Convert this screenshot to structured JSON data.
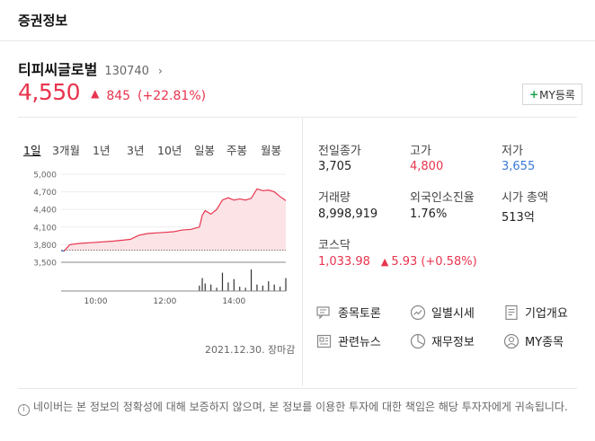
{
  "header": {
    "title": "증권정보"
  },
  "stock": {
    "name": "티피씨글로벌",
    "code": "130740",
    "price": "4,550",
    "change": "845",
    "change_pct": "(+22.81%)",
    "my_button": "MY등록"
  },
  "periods": [
    "1일",
    "3개월",
    "1년",
    "3년",
    "10년",
    "일봉",
    "주봉",
    "월봉"
  ],
  "active_period": "1일",
  "chart_data": {
    "type": "area",
    "title": "",
    "y_ticks": [
      "5,000",
      "4,700",
      "4,400",
      "4,100",
      "3,800",
      "3,500"
    ],
    "ylim": [
      3500,
      5000
    ],
    "x_ticks": [
      "10:00",
      "12:00",
      "14:00"
    ],
    "x_time_range": [
      "09:00",
      "15:30"
    ],
    "reference_price": 3705,
    "price_series": {
      "times": [
        "09:00",
        "09:05",
        "09:15",
        "09:30",
        "10:00",
        "10:30",
        "11:00",
        "11:15",
        "11:30",
        "11:45",
        "12:00",
        "12:15",
        "12:30",
        "12:45",
        "13:00",
        "13:05",
        "13:10",
        "13:20",
        "13:30",
        "13:40",
        "13:50",
        "14:00",
        "14:10",
        "14:20",
        "14:30",
        "14:40",
        "14:50",
        "15:00",
        "15:10",
        "15:20",
        "15:30"
      ],
      "values": [
        3700,
        3690,
        3800,
        3820,
        3840,
        3860,
        3890,
        3960,
        3990,
        4000,
        4010,
        4020,
        4050,
        4060,
        4100,
        4300,
        4380,
        4320,
        4400,
        4560,
        4600,
        4560,
        4580,
        4560,
        4590,
        4750,
        4720,
        4730,
        4700,
        4620,
        4550
      ]
    },
    "volume_series": {
      "times": [
        "13:00",
        "13:05",
        "13:10",
        "13:20",
        "13:30",
        "13:40",
        "13:50",
        "14:00",
        "14:10",
        "14:20",
        "14:30",
        "14:40",
        "14:50",
        "15:00",
        "15:10",
        "15:20",
        "15:30"
      ],
      "values": [
        25,
        60,
        35,
        30,
        15,
        85,
        40,
        55,
        20,
        15,
        100,
        30,
        25,
        45,
        30,
        20,
        60
      ]
    },
    "colors": {
      "line": "#e8344e",
      "fill": "#fbe3e6",
      "below_ref": "#3a78d8",
      "volume": "#333333"
    }
  },
  "date": "2021.12.30. 장마감",
  "info": {
    "prev_close": {
      "label": "전일종가",
      "value": "3,705"
    },
    "high": {
      "label": "고가",
      "value": "4,800"
    },
    "low": {
      "label": "저가",
      "value": "3,655"
    },
    "volume": {
      "label": "거래량",
      "value": "8,998,919"
    },
    "foreign": {
      "label": "외국인소진율",
      "value": "1.76%"
    },
    "market_cap": {
      "label": "시가 총액",
      "value": "513억"
    },
    "kosdaq": {
      "label": "코스닥",
      "value": "1,033.98",
      "change": "5.93",
      "change_pct": "(+0.58%)"
    }
  },
  "links": [
    {
      "label": "종목토론",
      "icon": "discussion-icon"
    },
    {
      "label": "일별시세",
      "icon": "trend-icon"
    },
    {
      "label": "기업개요",
      "icon": "document-icon"
    },
    {
      "label": "관련뉴스",
      "icon": "news-icon"
    },
    {
      "label": "재무정보",
      "icon": "pie-chart-icon"
    },
    {
      "label": "MY종목",
      "icon": "user-icon"
    }
  ],
  "notice": "네이버는 본 정보의 정확성에 대해 보증하지 않으며, 본 정보를 이용한 투자에 대한 책임은 해당 투자자에게 귀속됩니다."
}
